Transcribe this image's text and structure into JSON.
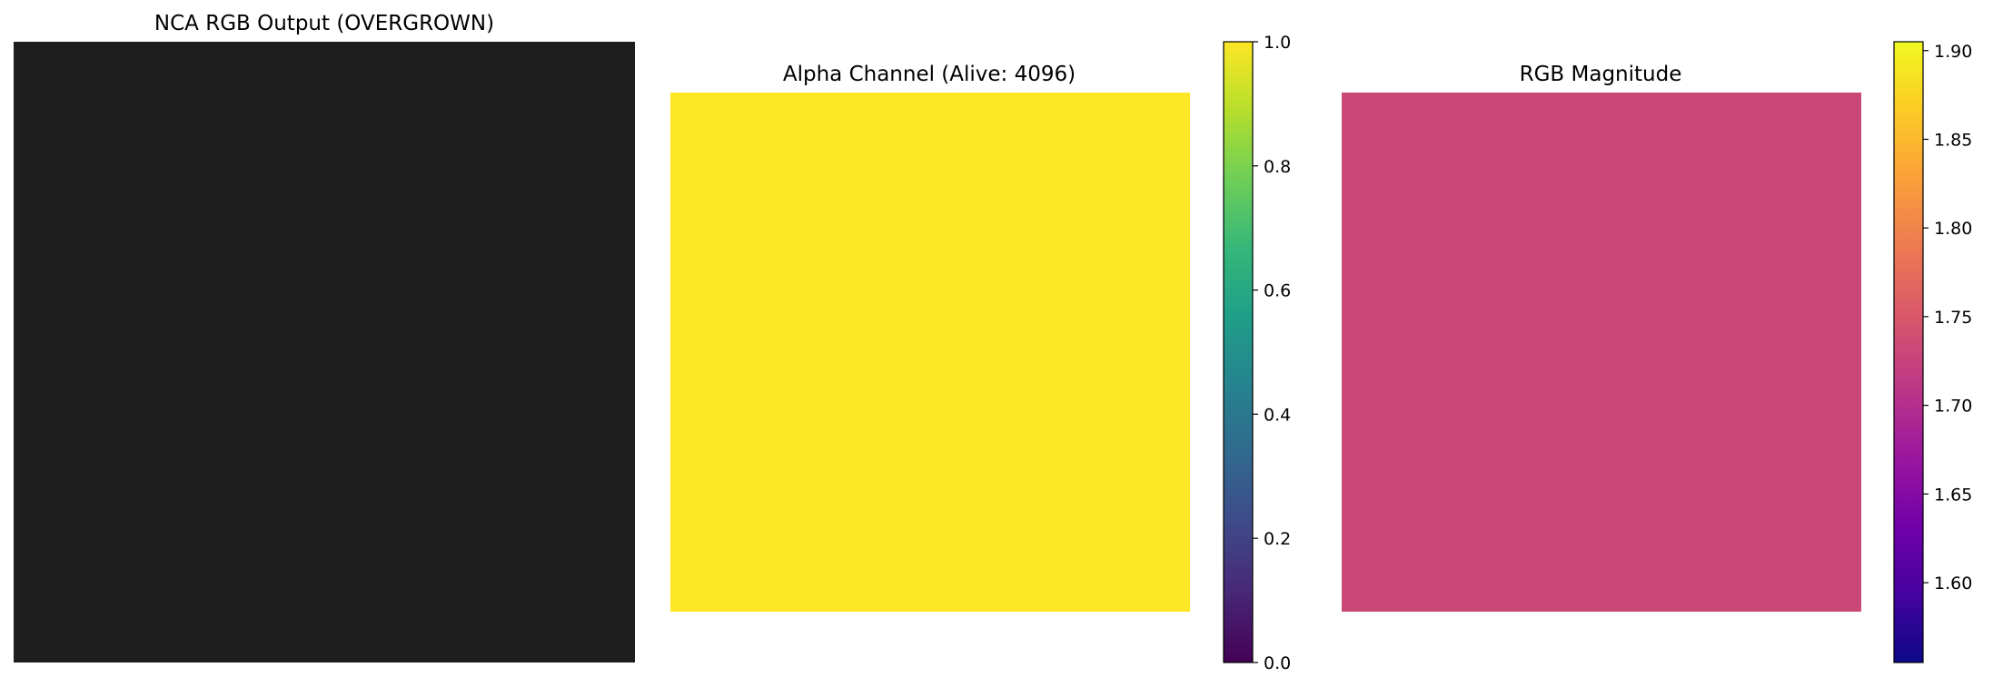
{
  "chart_data": [
    {
      "type": "heatmap",
      "title": "NCA RGB Output (OVERGROWN)",
      "fill_color": "#1e1e1e",
      "axes": "off",
      "colorbar": false
    },
    {
      "type": "heatmap",
      "title": "Alpha Channel (Alive: 4096)",
      "fill_color": "#fde724",
      "axes": "off",
      "colormap": "viridis",
      "colormap_stops": [
        "#440154",
        "#482777",
        "#3e4989",
        "#31688e",
        "#26828e",
        "#1f9e89",
        "#35b779",
        "#6ece58",
        "#b5de2b",
        "#fde725"
      ],
      "clim": [
        0,
        1
      ],
      "colorbar_ticks": [
        0.0,
        0.2,
        0.4,
        0.6,
        0.8,
        1.0
      ],
      "colorbar_tick_labels": [
        "0.0",
        "0.2",
        "0.4",
        "0.6",
        "0.8",
        "1.0"
      ]
    },
    {
      "type": "heatmap",
      "title": "RGB Magnitude",
      "fill_color": "#c94877",
      "axes": "off",
      "colormap": "plasma",
      "colormap_stops": [
        "#0d0887",
        "#46039f",
        "#7201a8",
        "#9c179e",
        "#bd3786",
        "#d8576b",
        "#ed7953",
        "#fb9f3a",
        "#fdca26",
        "#f0f921"
      ],
      "clim": [
        1.555,
        1.905
      ],
      "colorbar_ticks": [
        1.6,
        1.65,
        1.7,
        1.75,
        1.8,
        1.85,
        1.9
      ],
      "colorbar_tick_labels": [
        "1.60",
        "1.65",
        "1.70",
        "1.75",
        "1.80",
        "1.85",
        "1.90"
      ]
    }
  ]
}
